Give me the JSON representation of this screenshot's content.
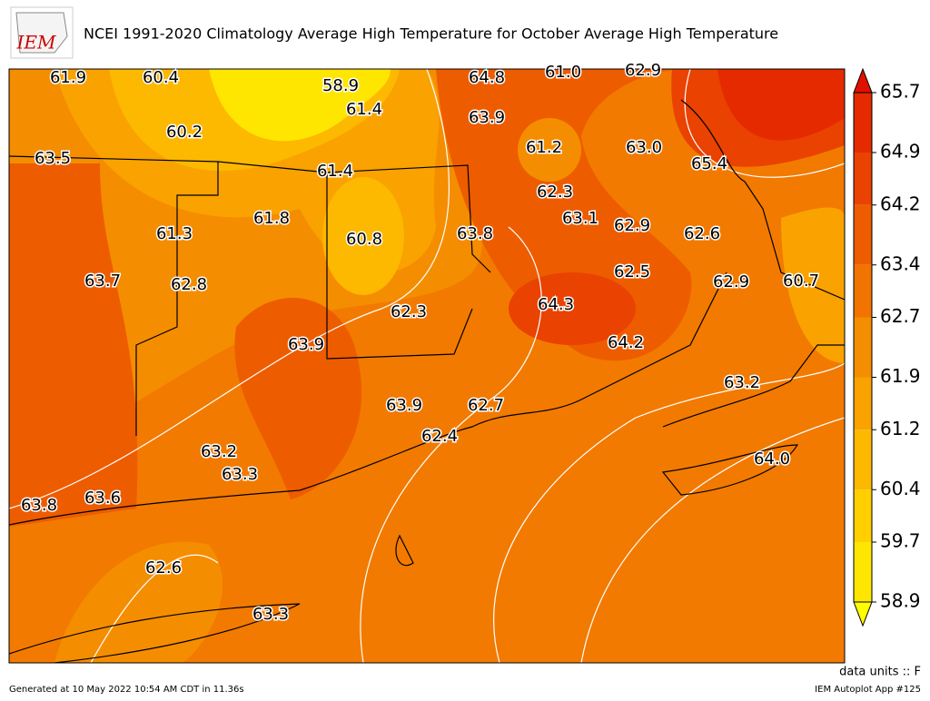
{
  "header": {
    "logo": "IEM",
    "title": "NCEI 1991-2020 Climatology Average High Temperature for October Average High Temperature"
  },
  "map": {
    "stations": [
      "61.9",
      "60.4",
      "58.9",
      "64.8",
      "61.0",
      "62.9",
      "61.4",
      "63.9",
      "60.2",
      "61.2",
      "63.0",
      "63.5",
      "61.4",
      "65.4",
      "62.3",
      "61.8",
      "63.1",
      "62.9",
      "61.3",
      "60.8",
      "63.8",
      "62.6",
      "62.5",
      "63.7",
      "62.8",
      "62.9",
      "60.7",
      "64.3",
      "62.3",
      "63.9",
      "64.2",
      "63.2",
      "63.9",
      "62.7",
      "62.4",
      "63.2",
      "64.0",
      "63.3",
      "63.8",
      "63.6",
      "62.6",
      "63.3"
    ]
  },
  "colorbar": {
    "ticks": [
      58.9,
      59.7,
      60.4,
      61.2,
      61.9,
      62.7,
      63.4,
      64.2,
      64.9,
      65.7
    ],
    "colors": [
      "#ffe600",
      "#ffcf00",
      "#fdb800",
      "#f9a200",
      "#f58d00",
      "#f27400",
      "#ee5c00",
      "#ea4200",
      "#e52a00"
    ],
    "under": "#ffff00",
    "over": "#e01000",
    "units": "data units :: F"
  },
  "footer": {
    "generated": "Generated at 10 May 2022 10:54 AM CDT in 11.36s",
    "app": "IEM Autoplot App #125"
  }
}
